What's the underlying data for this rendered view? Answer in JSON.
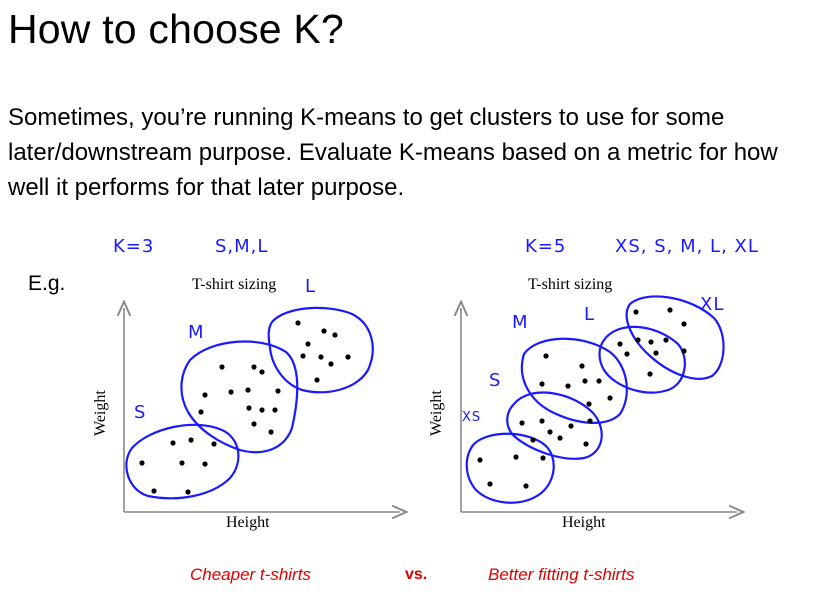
{
  "slide": {
    "title": "How to choose K?",
    "body": "Sometimes, you’re running K-means to get clusters to use for some later/downstream purpose. Evaluate K-means based on a metric for how well it performs for that later purpose.",
    "example_label": "E.g.",
    "vs_label": "vs."
  },
  "left_plot": {
    "title": "T-shirt sizing",
    "xlabel": "Height",
    "ylabel": "Weight",
    "caption": "Cheaper t-shirts",
    "handwriting": {
      "k": "K=3",
      "sizes": "S,M,L",
      "cluster_labels": [
        "S",
        "M",
        "L"
      ]
    },
    "ink_color": "#1a1aff"
  },
  "right_plot": {
    "title": "T-shirt sizing",
    "xlabel": "Height",
    "ylabel": "Weight",
    "caption": "Better fitting t-shirts",
    "handwriting": {
      "k": "K=5",
      "sizes": "XS, S, M, L, XL",
      "cluster_labels": [
        "XS",
        "S",
        "M",
        "L",
        "XL"
      ]
    },
    "ink_color": "#1a1aff"
  },
  "caption_color": "#e00000"
}
